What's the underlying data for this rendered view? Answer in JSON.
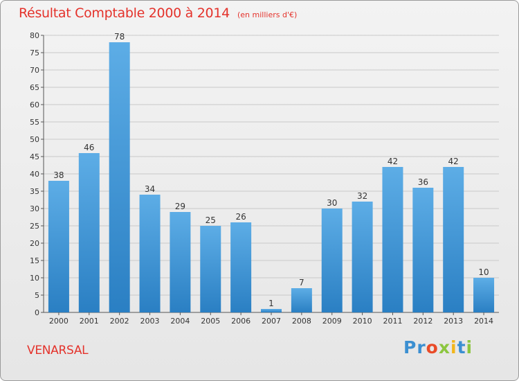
{
  "chart_data": {
    "type": "bar",
    "title": "Résultat Comptable 2000 à 2014",
    "subtitle": "(en milliers d'€)",
    "categories": [
      "2000",
      "2001",
      "2002",
      "2003",
      "2004",
      "2005",
      "2006",
      "2007",
      "2008",
      "2009",
      "2010",
      "2011",
      "2012",
      "2013",
      "2014"
    ],
    "values": [
      38,
      46,
      78,
      34,
      29,
      25,
      26,
      1,
      7,
      30,
      32,
      42,
      36,
      42,
      10
    ],
    "ylim": [
      0,
      80
    ],
    "yticks": [
      0,
      5,
      10,
      15,
      20,
      25,
      30,
      35,
      40,
      45,
      50,
      55,
      60,
      65,
      70,
      75,
      80
    ],
    "grid": true,
    "bar_color_top": "#5dade6",
    "bar_color_bottom": "#2a7fc3",
    "grid_color": "#c9c9c9"
  },
  "commune": "VENARSAL",
  "brand": {
    "letters": [
      "P",
      "r",
      "o",
      "x",
      "i",
      "t",
      "i"
    ],
    "colors": [
      "#3b8fd1",
      "#3b8fd1",
      "#e94b28",
      "#8cc63f",
      "#f2b61b",
      "#3b8fd1",
      "#8cc63f"
    ]
  },
  "title_color": "#e4322b"
}
